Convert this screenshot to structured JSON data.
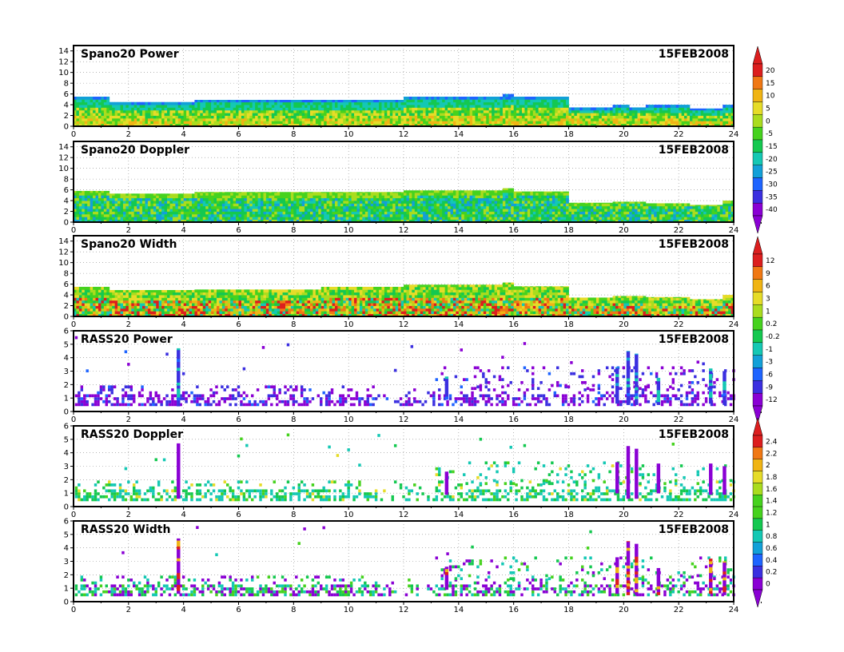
{
  "date": "15FEB2008",
  "x_ticks": [
    "0",
    "2",
    "4",
    "6",
    "8",
    "10",
    "12",
    "14",
    "16",
    "18",
    "20",
    "22",
    "24"
  ],
  "spano_y_ticks": [
    "0",
    "2",
    "4",
    "6",
    "8",
    "10",
    "12",
    "14"
  ],
  "rass_y_ticks": [
    "0",
    "1",
    "2",
    "3",
    "4",
    "5",
    "6"
  ],
  "colorbar_1": {
    "labels": [
      "20",
      "15",
      "10",
      "5",
      "0",
      "-5",
      "-15",
      "-20",
      "-25",
      "-30",
      "-35",
      "-40"
    ]
  },
  "colorbar_2": {
    "labels": [
      "12",
      "9",
      "6",
      "3",
      "1",
      "0.2",
      "-0.2",
      "-1",
      "-3",
      "-6",
      "-9",
      "-12"
    ]
  },
  "colorbar_3": {
    "labels": [
      "2.4",
      "2.2",
      "2",
      "1.8",
      "1.6",
      "1.4",
      "1.2",
      "1",
      "0.8",
      "0.6",
      "0.4",
      "0.2",
      "0"
    ]
  },
  "chart_data": [
    {
      "type": "heatmap",
      "title": "Spano20 Power",
      "subtitle": "15FEB2008",
      "xlim": [
        0,
        24
      ],
      "ylim": [
        0,
        15
      ],
      "grid": true,
      "top_height_km": [
        {
          "hour": 0,
          "top": 5.5
        },
        {
          "hour": 1.3,
          "top": 4.5
        },
        {
          "hour": 4.4,
          "top": 4.9
        },
        {
          "hour": 12,
          "top": 5.5
        },
        {
          "hour": 15.6,
          "top": 6.0
        },
        {
          "hour": 16,
          "top": 5.5
        },
        {
          "hour": 18,
          "top": 3.5
        },
        {
          "hour": 19.6,
          "top": 4.0
        },
        {
          "hour": 20.2,
          "top": 3.5
        },
        {
          "hour": 20.8,
          "top": 4.0
        },
        {
          "hour": 22.4,
          "top": 3.3
        },
        {
          "hour": 23.6,
          "top": 4.0
        }
      ]
    },
    {
      "type": "heatmap",
      "title": "Spano20 Doppler",
      "subtitle": "15FEB2008",
      "xlim": [
        0,
        24
      ],
      "ylim": [
        0,
        15
      ],
      "grid": true,
      "top_height_km": [
        {
          "hour": 0,
          "top": 5.8
        },
        {
          "hour": 1.3,
          "top": 5.3
        },
        {
          "hour": 4.4,
          "top": 5.6
        },
        {
          "hour": 12,
          "top": 5.9
        },
        {
          "hour": 15.6,
          "top": 6.3
        },
        {
          "hour": 16,
          "top": 5.7
        },
        {
          "hour": 18,
          "top": 3.6
        },
        {
          "hour": 19.6,
          "top": 3.8
        },
        {
          "hour": 20.8,
          "top": 3.5
        },
        {
          "hour": 22.4,
          "top": 3.2
        },
        {
          "hour": 23.6,
          "top": 4.0
        }
      ]
    },
    {
      "type": "heatmap",
      "title": "Spano20 Width",
      "subtitle": "15FEB2008",
      "xlim": [
        0,
        24
      ],
      "ylim": [
        0,
        15
      ],
      "grid": true,
      "top_height_km": [
        {
          "hour": 0,
          "top": 5.5
        },
        {
          "hour": 1.3,
          "top": 4.9
        },
        {
          "hour": 4.4,
          "top": 5.0
        },
        {
          "hour": 9,
          "top": 5.5
        },
        {
          "hour": 12,
          "top": 5.9
        },
        {
          "hour": 15.6,
          "top": 6.3
        },
        {
          "hour": 16,
          "top": 5.6
        },
        {
          "hour": 18,
          "top": 3.5
        },
        {
          "hour": 19.6,
          "top": 3.8
        },
        {
          "hour": 20.8,
          "top": 3.6
        },
        {
          "hour": 22.4,
          "top": 3.2
        },
        {
          "hour": 23.6,
          "top": 4.0
        }
      ]
    },
    {
      "type": "heatmap",
      "title": "RASS20 Power",
      "subtitle": "15FEB2008",
      "xlim": [
        0,
        24
      ],
      "ylim": [
        0,
        6
      ],
      "grid": true,
      "vertical_profiles": [
        {
          "hour": 3.75,
          "from": 0.4,
          "to": 4.7
        },
        {
          "hour": 13.5,
          "from": 0.9,
          "to": 2.6
        },
        {
          "hour": 19.7,
          "from": 0.6,
          "to": 3.3
        },
        {
          "hour": 20.1,
          "from": 0.5,
          "to": 4.5
        },
        {
          "hour": 20.4,
          "from": 0.5,
          "to": 4.3
        },
        {
          "hour": 21.2,
          "from": 0.5,
          "to": 2.5
        },
        {
          "hour": 23.1,
          "from": 0.6,
          "to": 3.2
        },
        {
          "hour": 23.6,
          "from": 0.5,
          "to": 3.0
        }
      ]
    },
    {
      "type": "heatmap",
      "title": "RASS20 Doppler",
      "subtitle": "15FEB2008",
      "xlim": [
        0,
        24
      ],
      "ylim": [
        0,
        6
      ],
      "grid": true,
      "vertical_profiles": [
        {
          "hour": 3.75,
          "from": 0.6,
          "to": 4.7
        },
        {
          "hour": 13.5,
          "from": 0.9,
          "to": 2.6
        },
        {
          "hour": 19.7,
          "from": 1.0,
          "to": 3.3
        },
        {
          "hour": 20.1,
          "from": 0.6,
          "to": 4.5
        },
        {
          "hour": 20.4,
          "from": 0.6,
          "to": 4.3
        },
        {
          "hour": 21.2,
          "from": 1.0,
          "to": 3.2
        },
        {
          "hour": 23.1,
          "from": 0.9,
          "to": 3.2
        },
        {
          "hour": 23.6,
          "from": 0.9,
          "to": 3.0
        }
      ]
    },
    {
      "type": "heatmap",
      "title": "RASS20 Width",
      "subtitle": "15FEB2008",
      "xlim": [
        0,
        24
      ],
      "ylim": [
        0,
        6
      ],
      "grid": true,
      "vertical_profiles": [
        {
          "hour": 3.75,
          "from": 0.6,
          "to": 4.7
        },
        {
          "hour": 13.5,
          "from": 0.9,
          "to": 2.6
        },
        {
          "hour": 19.7,
          "from": 0.6,
          "to": 3.3
        },
        {
          "hour": 20.1,
          "from": 0.5,
          "to": 4.5
        },
        {
          "hour": 20.4,
          "from": 0.5,
          "to": 4.3
        },
        {
          "hour": 21.2,
          "from": 0.5,
          "to": 2.5
        },
        {
          "hour": 23.1,
          "from": 0.6,
          "to": 3.2
        },
        {
          "hour": 23.6,
          "from": 0.5,
          "to": 3.0
        }
      ]
    }
  ],
  "colors": {
    "power_scale": [
      "#8a00d4",
      "#3b2fe0",
      "#1e64ff",
      "#12a0d8",
      "#14c8b4",
      "#14c850",
      "#46d21e",
      "#aadc1e",
      "#e6dc28",
      "#f0b414",
      "#f07814",
      "#dc1e1e"
    ],
    "width_scale": [
      "#8a00d4",
      "#3b2fe0",
      "#1e64ff",
      "#12a0d8",
      "#14c8b4",
      "#14c850",
      "#46d21e",
      "#aadc1e",
      "#e6dc28",
      "#f0b414",
      "#f07814",
      "#dc1e1e"
    ]
  }
}
